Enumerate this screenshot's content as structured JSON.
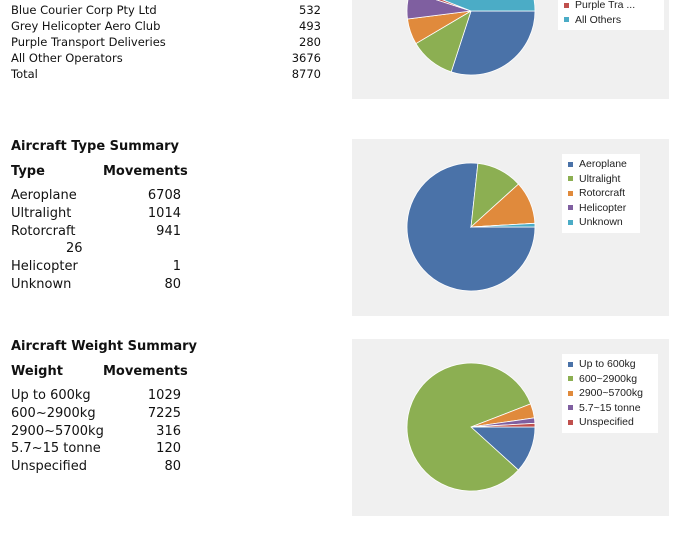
{
  "operators": {
    "rows": [
      {
        "name": "Blue Courier Corp Pty Ltd",
        "value": "532"
      },
      {
        "name": "Grey Helicopter Aero Club",
        "value": "493"
      },
      {
        "name": "Purple Transport Deliveries",
        "value": "280"
      },
      {
        "name": "All Other Operators",
        "value": "3676"
      },
      {
        "name": "Total",
        "value": "8770"
      }
    ],
    "legend_partial": [
      "Purple Tra ...",
      "All Others"
    ],
    "legend_partial_colors": [
      "#c0504d",
      "#4bacc6"
    ]
  },
  "type_summary": {
    "title": "Aircraft Type Summary",
    "col_label": "Type",
    "col_value": "Movements",
    "rows": [
      {
        "label": "Aeroplane",
        "value": "6708"
      },
      {
        "label": "Ultralight",
        "value": "1014"
      },
      {
        "label": "Rotorcraft",
        "value": "941"
      },
      {
        "label": "Helicopter",
        "value": "1"
      },
      {
        "label": "Unknown",
        "value": "80"
      }
    ],
    "stray_value": "26"
  },
  "weight_summary": {
    "title": "Aircraft Weight Summary",
    "col_label": "Weight",
    "col_value": "Movements",
    "rows": [
      {
        "label": "Up to 600kg",
        "value": "1029"
      },
      {
        "label": "600~2900kg",
        "value": "7225"
      },
      {
        "label": "2900~5700kg",
        "value": "316"
      },
      {
        "label": "5.7~15 tonne",
        "value": "120"
      },
      {
        "label": "Unspecified",
        "value": "80"
      }
    ]
  },
  "chart_data": [
    {
      "type": "pie",
      "title": "",
      "series": [
        {
          "name": "Blue Courier Corp Pty Ltd",
          "value": 0.3,
          "color": "#4a72a8"
        },
        {
          "name": "Grey Helicopter Aero Club",
          "value": 0.115,
          "color": "#8caf52"
        },
        {
          "name": "Purple Transport Deliveries",
          "value": 0.065,
          "color": "#e08a3c"
        },
        {
          "name": "All Other Operators",
          "value": 0.07,
          "color": "#7f5fa0"
        },
        {
          "name": "Purple Tra ...",
          "value": 0.01,
          "color": "#c0504d"
        },
        {
          "name": "All Others",
          "value": 0.44,
          "color": "#4bacc6"
        }
      ],
      "start_angle_deg": 0,
      "legend_position": "top-right"
    },
    {
      "type": "pie",
      "title": "",
      "series": [
        {
          "name": "Aeroplane",
          "value": 6708,
          "color": "#4a72a8"
        },
        {
          "name": "Ultralight",
          "value": 1014,
          "color": "#8caf52"
        },
        {
          "name": "Rotorcraft",
          "value": 941,
          "color": "#e08a3c"
        },
        {
          "name": "Helicopter",
          "value": 1,
          "color": "#7f5fa0"
        },
        {
          "name": "Unknown",
          "value": 80,
          "color": "#4bacc6"
        }
      ],
      "legend": [
        "Aeroplane",
        "Ultralight",
        "Rotorcraft",
        "Helicopter",
        "Unknown"
      ],
      "start_angle_deg": 0,
      "legend_position": "top-right"
    },
    {
      "type": "pie",
      "title": "",
      "series": [
        {
          "name": "Up to 600kg",
          "value": 1029,
          "color": "#4a72a8"
        },
        {
          "name": "600~2900kg",
          "value": 7225,
          "color": "#8caf52"
        },
        {
          "name": "2900~5700kg",
          "value": 316,
          "color": "#e08a3c"
        },
        {
          "name": "5.7~15 tonne",
          "value": 120,
          "color": "#7f5fa0"
        },
        {
          "name": "Unspecified",
          "value": 80,
          "color": "#c0504d"
        }
      ],
      "legend": [
        "Up to 600kg",
        "600~2900kg",
        "2900~5700kg",
        "5.7~15 tonne",
        "Unspecified"
      ],
      "start_angle_deg": 0,
      "legend_position": "top-right"
    }
  ]
}
